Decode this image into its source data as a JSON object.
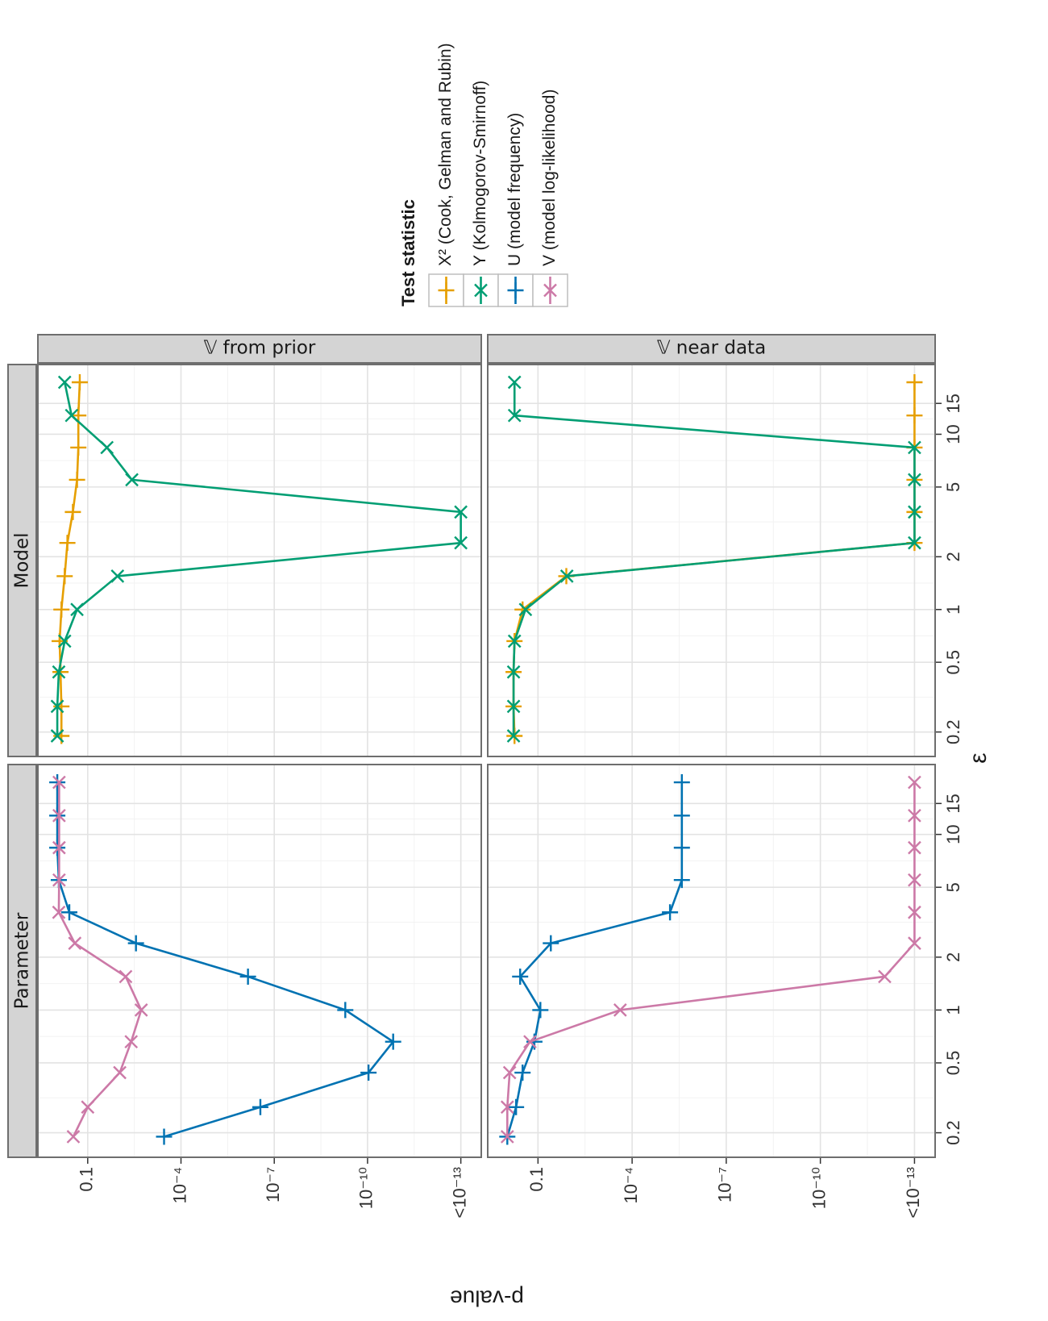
{
  "chart_data": {
    "type": "line",
    "x_label": "ε",
    "y_label": "p-value",
    "legend_title": "Test statistic",
    "legend": "right",
    "log_scale": true,
    "grid": true,
    "x": [
      0.19,
      0.28,
      0.44,
      0.66,
      1,
      1.55,
      2.4,
      3.6,
      5.5,
      8.4,
      12.8,
      19.8
    ],
    "xlim": [
      0.145,
      25
    ],
    "xticks": [
      0.2,
      0.5,
      1,
      2,
      5,
      10,
      15
    ],
    "ylim": [
      2.2e-14,
      4
    ],
    "yticks": [
      0.1,
      {
        "value": 0.0001,
        "label": "10⁻⁴"
      },
      {
        "value": 1e-07,
        "label": "10⁻⁷"
      },
      {
        "value": 1e-10,
        "label": "10⁻¹⁰"
      },
      {
        "value": 1e-13,
        "label": "<10⁻¹³"
      }
    ],
    "rows": [
      "𝕍 from prior",
      "𝕍 near data"
    ],
    "columns": [
      {
        "label": "Parameter",
        "series": [
          {
            "name": "U (model frequency)",
            "color": "#0072B2",
            "marker": "plus",
            "values": [
              [
                0.00035,
                2.8e-07,
                9.3e-11,
                1.5e-11,
                5.2e-10,
                7e-07,
                0.0028,
                0.39,
                0.85,
                0.95,
                0.95,
                0.95
              ],
              [
                0.95,
                0.5,
                0.31,
                0.13,
                0.084,
                0.37,
                0.039,
                6.2e-06,
                2.6e-06,
                2.6e-06,
                2.6e-06,
                2.6e-06
              ]
            ]
          },
          {
            "name": "V (model log-likelihood)",
            "color": "#CC79A7",
            "marker": "cross",
            "values": [
              [
                0.29,
                0.1,
                0.0093,
                0.004,
                0.0019,
                0.006,
                0.26,
                0.85,
                0.83,
                0.83,
                0.83,
                0.83
              ],
              [
                0.95,
                0.95,
                0.8,
                0.18,
                0.00024,
                8.9e-13,
                1e-13,
                1e-13,
                1e-13,
                1e-13,
                1e-13,
                1e-13
              ]
            ]
          }
        ]
      },
      {
        "label": "Model",
        "series": [
          {
            "name": "X² (Cook, Gelman and Rubin)",
            "color": "#E69F00",
            "marker": "plus",
            "values": [
              [
                0.7,
                0.7,
                0.75,
                0.8,
                0.7,
                0.55,
                0.45,
                0.3,
                0.22,
                0.2,
                0.2,
                0.18
              ],
              [
                0.56,
                0.6,
                0.6,
                0.56,
                0.31,
                0.0125,
                1e-13,
                1e-13,
                1e-13,
                1e-13,
                1e-13,
                1e-13
              ]
            ]
          },
          {
            "name": "Y (Kolmogorov-Smirnoff)",
            "color": "#009E73",
            "marker": "cross",
            "values": [
              [
                0.95,
                0.95,
                0.85,
                0.55,
                0.22,
                0.011,
                1e-13,
                1e-13,
                0.0038,
                0.024,
                0.33,
                0.55
              ],
              [
                0.6,
                0.6,
                0.6,
                0.56,
                0.25,
                0.012,
                1e-13,
                1e-13,
                1e-13,
                1e-13,
                0.56,
                0.56
              ]
            ]
          }
        ]
      }
    ]
  }
}
